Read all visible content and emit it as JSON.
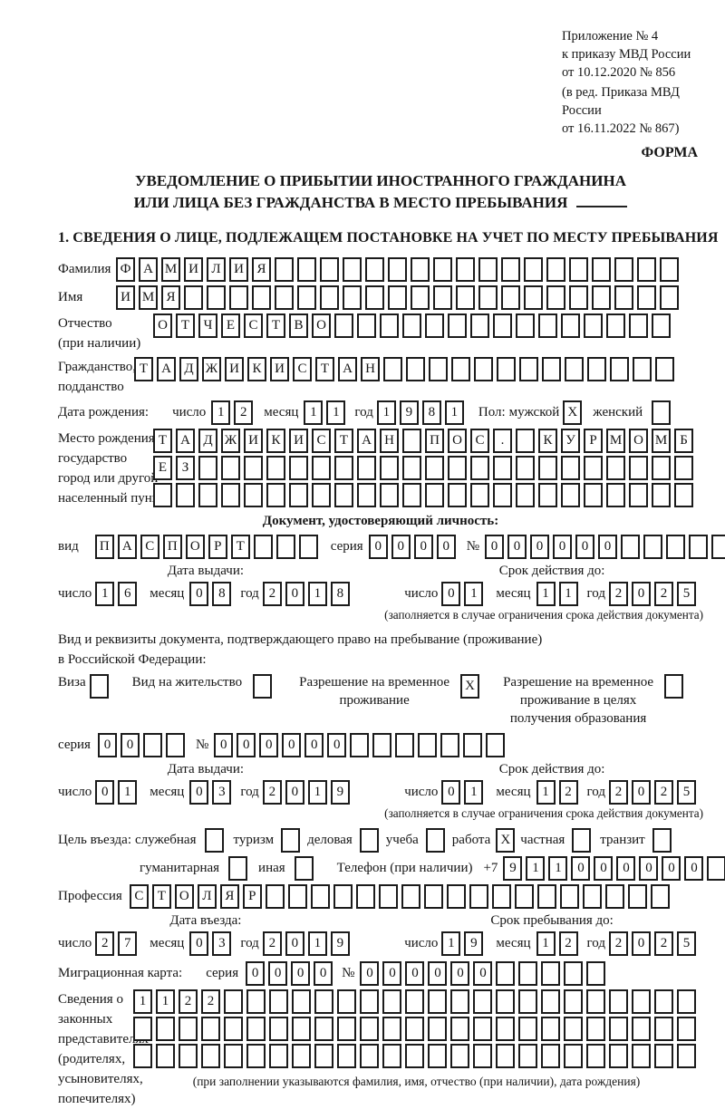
{
  "header": {
    "annex_line1": "Приложение № 4",
    "annex_line2": "к приказу МВД России",
    "annex_line3": "от 10.12.2020 № 856",
    "revision_line1": "(в ред. Приказа МВД России",
    "revision_line2": "от 16.11.2022 № 867)",
    "form_label": "ФОРМА"
  },
  "title": {
    "line1": "УВЕДОМЛЕНИЕ О ПРИБЫТИИ ИНОСТРАННОГО ГРАЖДАНИНА",
    "line2": "ИЛИ ЛИЦА БЕЗ ГРАЖДАНСТВА В МЕСТО ПРЕБЫВАНИЯ"
  },
  "section1_title": "1. СВЕДЕНИЯ О ЛИЦЕ, ПОДЛЕЖАЩЕМ ПОСТАНОВКЕ НА УЧЕТ ПО МЕСТУ ПРЕБЫВАНИЯ",
  "labels": {
    "surname": "Фамилия",
    "given_name": "Имя",
    "patronymic": "Отчество",
    "patronymic_note": "(при наличии)",
    "citizenship_line1": "Гражданство,",
    "citizenship_line2": "подданство",
    "birth_date": "Дата рождения:",
    "day": "число",
    "month": "месяц",
    "year": "год",
    "sex": "Пол:",
    "male": "мужской",
    "female": "женский",
    "birth_place": "Место рождения:",
    "birth_place_state": "государство",
    "birth_place_city1": "город или другой",
    "birth_place_city2": "населенный пункт",
    "identity_doc_heading": "Документ, удостоверяющий личность:",
    "doc_kind": "вид",
    "series": "серия",
    "number_sign": "№",
    "issue_date": "Дата выдачи:",
    "valid_until": "Срок действия до:",
    "valid_note": "(заполняется в случае ограничения срока действия документа)",
    "residence_line1": "Вид и реквизиты документа, подтверждающего право на пребывание (проживание)",
    "residence_line2": "в Российской Федерации:",
    "visa": "Виза",
    "residence_permit": "Вид на жительство",
    "temp_res_line1": "Разрешение на временное",
    "temp_res_line2": "проживание",
    "temp_res_edu_line1": "Разрешение на временное",
    "temp_res_edu_line2": "проживание в целях",
    "temp_res_edu_line3": "получения образования",
    "purpose": "Цель въезда:",
    "purpose_official": "служебная",
    "purpose_tourism": "туризм",
    "purpose_business": "деловая",
    "purpose_study": "учеба",
    "purpose_work": "работа",
    "purpose_private": "частная",
    "purpose_transit": "транзит",
    "purpose_humanitarian": "гуманитарная",
    "purpose_other": "иная",
    "phone": "Телефон (при наличии)",
    "phone_prefix": "+7",
    "profession": "Профессия",
    "entry_date": "Дата въезда:",
    "stay_until": "Срок пребывания до:",
    "migration_card": "Миграционная карта:",
    "rep_line1": "Сведения о",
    "rep_line2": "законных",
    "rep_line3": "представителях",
    "rep_line4": "(родителях,",
    "rep_line5": "усыновителях,",
    "rep_line6": "попечителях)",
    "rep_note": "(при заполнении указываются фамилия, имя, отчество (при наличии), дата рождения)"
  },
  "person": {
    "surname": "ФАМИЛИЯ",
    "given_name": "ИМЯ",
    "patronymic": "ОТЧЕСТВО",
    "citizenship": "ТАДЖИКИСТАН",
    "birth_day": "12",
    "birth_month": "11",
    "birth_year": "1981",
    "sex_male": "X",
    "sex_female": "",
    "birth_place_row1": "ТАДЖИКИСТАН ПОС. КУРМОМБ",
    "birth_place_row2": "ЕЗ",
    "birth_place_row3": ""
  },
  "identity_doc": {
    "kind": "ПАСПОРТ",
    "series": "0000",
    "number": "000000",
    "issue_day": "16",
    "issue_month": "08",
    "issue_year": "2018",
    "valid_day": "01",
    "valid_month": "11",
    "valid_year": "2025"
  },
  "residence_doc": {
    "visa": "",
    "residence_permit": "",
    "temp_residence": "X",
    "temp_residence_edu": "",
    "series": "00",
    "number": "000000",
    "issue_day": "01",
    "issue_month": "03",
    "issue_year": "2019",
    "valid_day": "01",
    "valid_month": "12",
    "valid_year": "2025"
  },
  "visit": {
    "official": "",
    "tourism": "",
    "business": "",
    "study": "",
    "work": "X",
    "private": "",
    "transit": "",
    "humanitarian": "",
    "other": "",
    "phone_digits": "911000000",
    "profession": "СТОЛЯР",
    "entry_day": "27",
    "entry_month": "03",
    "entry_year": "2019",
    "stay_day": "19",
    "stay_month": "12",
    "stay_year": "2025"
  },
  "migration_card": {
    "series": "0000",
    "number": "000000"
  },
  "representatives": {
    "row1": "1122",
    "row2": "",
    "row3": ""
  }
}
